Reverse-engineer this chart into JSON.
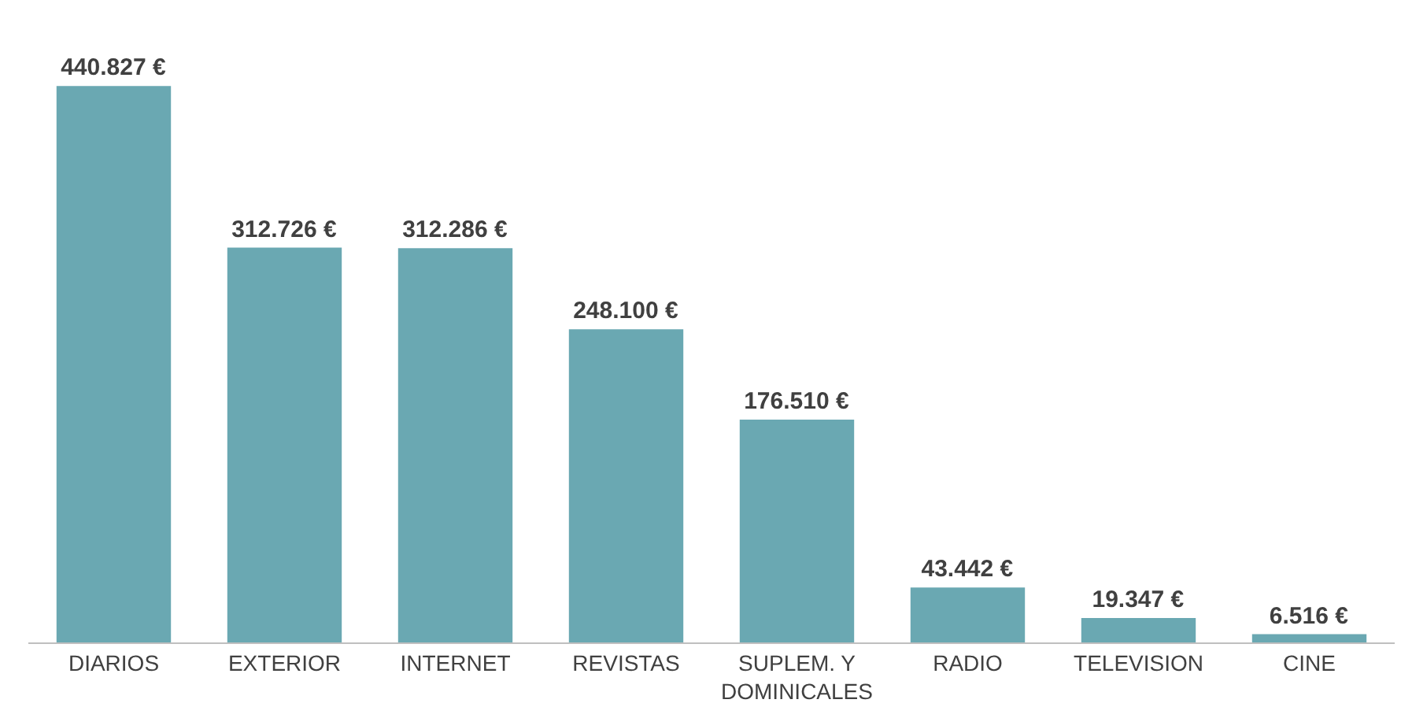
{
  "chart_data": {
    "type": "bar",
    "categories": [
      "DIARIOS",
      "EXTERIOR",
      "INTERNET",
      "REVISTAS",
      "SUPLEM. Y DOMINICALES",
      "RADIO",
      "TELEVISION",
      "CINE"
    ],
    "values": [
      440827,
      312726,
      312286,
      248100,
      176510,
      43442,
      19347,
      6516
    ],
    "value_labels": [
      "440.827 €",
      "312.726 €",
      "312.286 €",
      "248.100 €",
      "176.510 €",
      "43.442 €",
      "19.347 €",
      "6.516 €"
    ],
    "color": "#6aa8b2",
    "grid": false,
    "tick_labels": "x"
  }
}
